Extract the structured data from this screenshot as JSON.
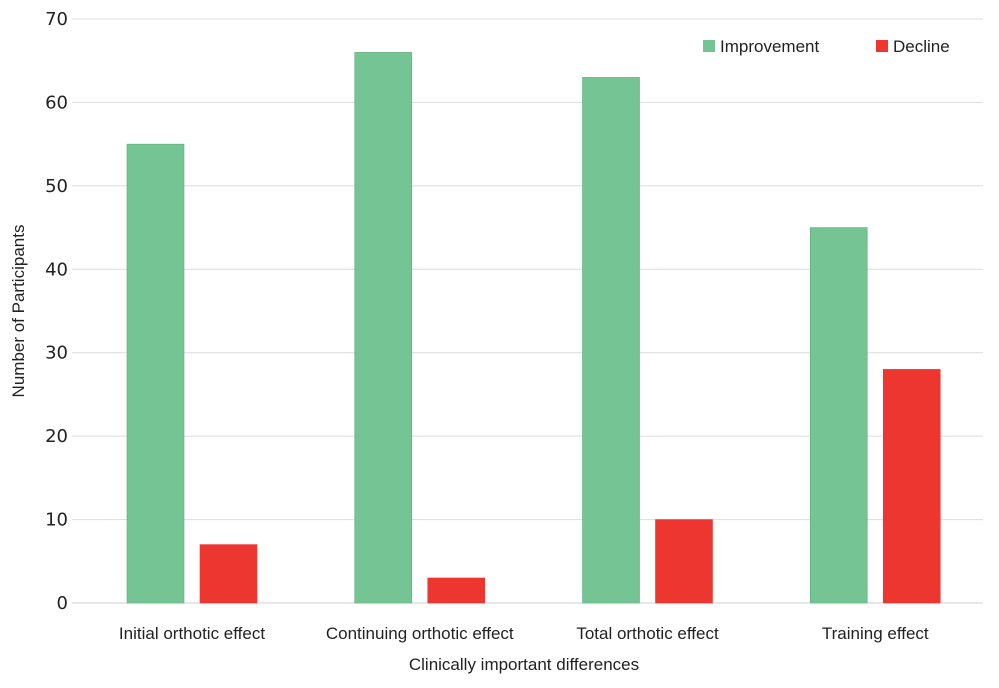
{
  "chart_data": {
    "type": "bar",
    "title": "",
    "xlabel": "Clinically important differences",
    "ylabel": "Number of Participants",
    "categories": [
      "Initial orthotic effect",
      "Continuing orthotic effect",
      "Total orthotic effect",
      "Training effect"
    ],
    "series": [
      {
        "name": "Improvement",
        "values": [
          55,
          66,
          63,
          45
        ],
        "color": "#74c494"
      },
      {
        "name": "Decline",
        "values": [
          7,
          3,
          10,
          28
        ],
        "color": "#ee3630"
      }
    ],
    "ylim": [
      0,
      70
    ],
    "yticks": [
      0,
      10,
      20,
      30,
      40,
      50,
      60,
      70
    ],
    "grid": true,
    "legend_position": "top-right"
  }
}
